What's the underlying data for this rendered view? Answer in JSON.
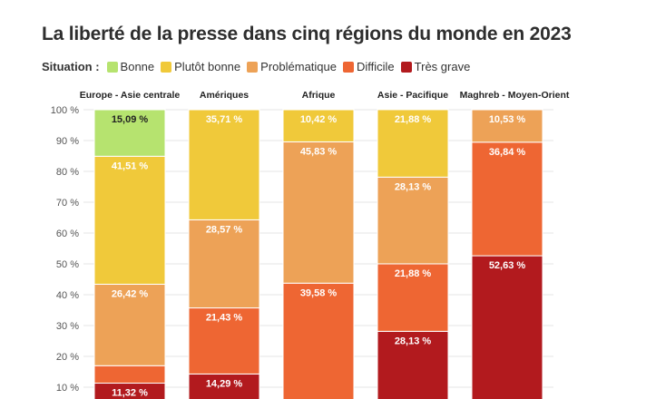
{
  "chart_data": {
    "type": "bar",
    "stacked": true,
    "title": "La liberté de la presse dans cinq régions du monde en 2023",
    "legend_title": "Situation :",
    "legend_position": "top-left",
    "ylim": [
      0,
      100
    ],
    "y_ticks": [
      "100 %",
      "90 %",
      "80 %",
      "70 %",
      "60 %",
      "50 %",
      "40 %",
      "30 %",
      "20 %",
      "10 %"
    ],
    "y_tick_values": [
      100,
      90,
      80,
      70,
      60,
      50,
      40,
      30,
      20,
      10
    ],
    "grid": true,
    "categories": [
      "Europe - Asie centrale",
      "Amériques",
      "Afrique",
      "Asie - Pacifique",
      "Maghreb - Moyen-Orient"
    ],
    "series": [
      {
        "name": "Bonne",
        "color": "#b6e36f",
        "values": [
          15.09,
          0,
          0,
          0,
          0
        ]
      },
      {
        "name": "Plutôt bonne",
        "color": "#f0c93a",
        "values": [
          41.51,
          35.71,
          10.42,
          21.88,
          0
        ]
      },
      {
        "name": "Problématique",
        "color": "#eda257",
        "values": [
          26.42,
          28.57,
          45.83,
          28.13,
          10.53
        ]
      },
      {
        "name": "Difficile",
        "color": "#ee6633",
        "values": [
          5.66,
          21.43,
          39.58,
          21.88,
          36.84
        ]
      },
      {
        "name": "Très grave",
        "color": "#b21a1e",
        "values": [
          11.32,
          14.29,
          4.17,
          28.13,
          52.63
        ]
      }
    ],
    "data_labels": [
      [
        "15,09 %",
        "",
        "",
        "",
        ""
      ],
      [
        "41,51 %",
        "35,71 %",
        "10,42 %",
        "21,88 %",
        ""
      ],
      [
        "26,42 %",
        "28,57 %",
        "45,83 %",
        "28,13 %",
        "10,53 %"
      ],
      [
        "",
        "21,43 %",
        "39,58 %",
        "21,88 %",
        "36,84 %"
      ],
      [
        "11,32 %",
        "14,29 %",
        "",
        "28,13 %",
        "52,63 %"
      ]
    ]
  }
}
